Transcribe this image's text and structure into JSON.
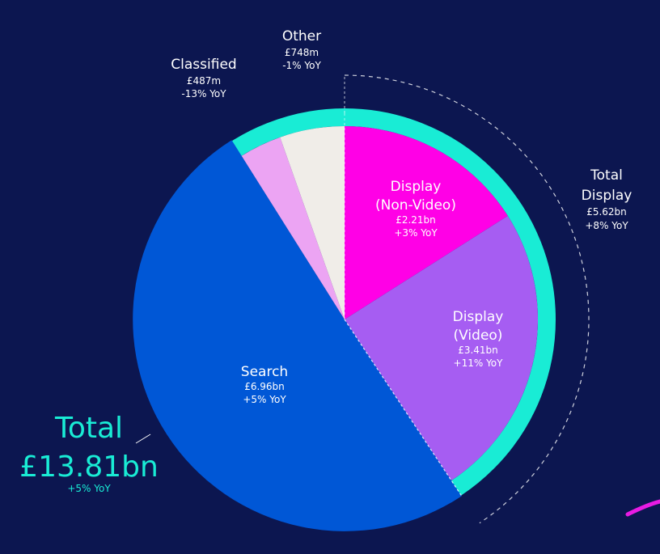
{
  "chart_data": {
    "type": "pie",
    "total": {
      "title": "Total",
      "value": "£13.81bn",
      "change": "+5% YoY"
    },
    "slices": [
      {
        "name": "Display (Non-Video)",
        "label_lines": [
          "Display",
          "(Non-Video)"
        ],
        "value": 2.21,
        "value_label": "£2.21bn",
        "change": "+3% YoY",
        "color": "#ff00e6",
        "text_color": "#ffffff"
      },
      {
        "name": "Display (Video)",
        "label_lines": [
          "Display",
          "(Video)"
        ],
        "value": 3.41,
        "value_label": "£3.41bn",
        "change": "+11% YoY",
        "color": "#a65df2",
        "text_color": "#ffffff"
      },
      {
        "name": "Search",
        "label_lines": [
          "Search"
        ],
        "value": 6.96,
        "value_label": "£6.96bn",
        "change": "+5% YoY",
        "color": "#0057d6",
        "text_color": "#ffffff"
      },
      {
        "name": "Classified",
        "label_lines": [
          "Classified"
        ],
        "value": 0.487,
        "value_label": "£487m",
        "change": "-13% YoY",
        "color": "#eca4f3",
        "text_color": "#ffffff"
      },
      {
        "name": "Other",
        "label_lines": [
          "Other"
        ],
        "value": 0.748,
        "value_label": "£748m",
        "change": "-1% YoY",
        "color": "#f0ede8",
        "text_color": "#ffffff"
      }
    ],
    "group": {
      "label_lines": [
        "Total",
        "Display"
      ],
      "value_label": "£5.62bn",
      "change": "+8% YoY"
    },
    "colors": {
      "background": "#0c1650",
      "ring": "#19ecd5",
      "total_text": "#19ecd5",
      "text": "#ffffff"
    }
  }
}
